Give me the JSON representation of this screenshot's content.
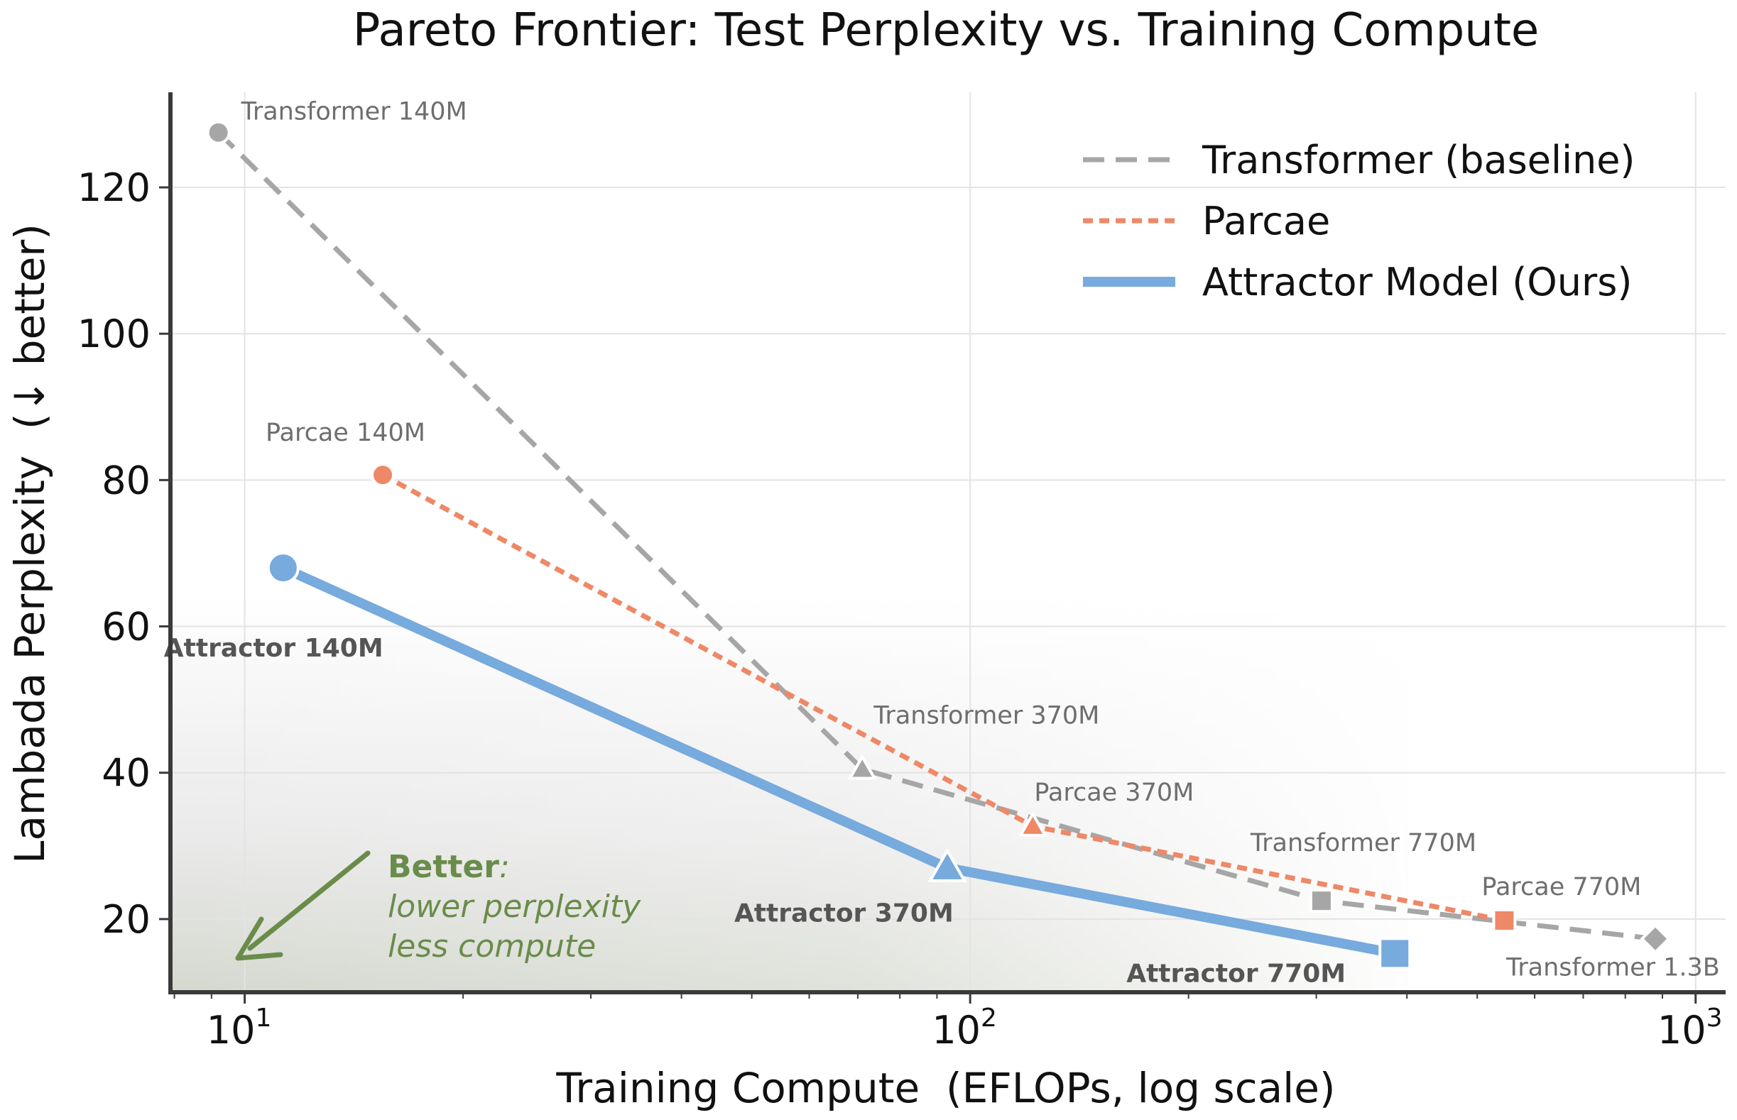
{
  "chart_data": {
    "type": "line",
    "title": "Pareto Frontier: Test Perplexity vs. Training Compute",
    "xlabel": "Training Compute  (EFLOPs, log scale)",
    "ylabel": "Lambada Perplexity  (↓ better)",
    "x_scale": "log",
    "xlim": [
      7.9,
      1100
    ],
    "ylim": [
      10,
      133
    ],
    "x_ticks": [
      {
        "value": 10,
        "base": "10",
        "exp": "1"
      },
      {
        "value": 100,
        "base": "10",
        "exp": "2"
      },
      {
        "value": 1000,
        "base": "10",
        "exp": "3"
      }
    ],
    "y_ticks": [
      20,
      40,
      60,
      80,
      100,
      120
    ],
    "grid": true,
    "legend_position": "top-right",
    "series": [
      {
        "name": "Transformer (baseline)",
        "color": "#a6a6a6",
        "line_style": "dashed",
        "points": [
          {
            "x": 9.2,
            "y": 127.5,
            "label": "Transformer 140M",
            "marker": "circle"
          },
          {
            "x": 71,
            "y": 40.5,
            "label": "Transformer 370M",
            "marker": "triangle"
          },
          {
            "x": 305,
            "y": 22.5,
            "label": "Transformer 770M",
            "marker": "square"
          },
          {
            "x": 880,
            "y": 17.3,
            "label": "Transformer 1.3B",
            "marker": "diamond"
          }
        ]
      },
      {
        "name": "Parcae",
        "color": "#ee8866",
        "line_style": "dotted",
        "points": [
          {
            "x": 15.5,
            "y": 80.7,
            "label": "Parcae 140M",
            "marker": "circle"
          },
          {
            "x": 122,
            "y": 32.7,
            "label": "Parcae 370M",
            "marker": "triangle"
          },
          {
            "x": 545,
            "y": 19.8,
            "label": "Parcae 770M",
            "marker": "square"
          }
        ]
      },
      {
        "name": "Attractor Model (Ours)",
        "color": "#77aadd",
        "line_style": "solid",
        "points": [
          {
            "x": 11.3,
            "y": 68.0,
            "label": "Attractor 140M",
            "marker": "circle"
          },
          {
            "x": 93,
            "y": 27.0,
            "label": "Attractor 370M",
            "marker": "triangle"
          },
          {
            "x": 385,
            "y": 15.3,
            "label": "Attractor 770M",
            "marker": "square"
          }
        ]
      }
    ],
    "annotation": {
      "title": "Better",
      "lines": [
        "lower perplexity",
        "less compute"
      ],
      "color": "#6a8c4a"
    }
  }
}
